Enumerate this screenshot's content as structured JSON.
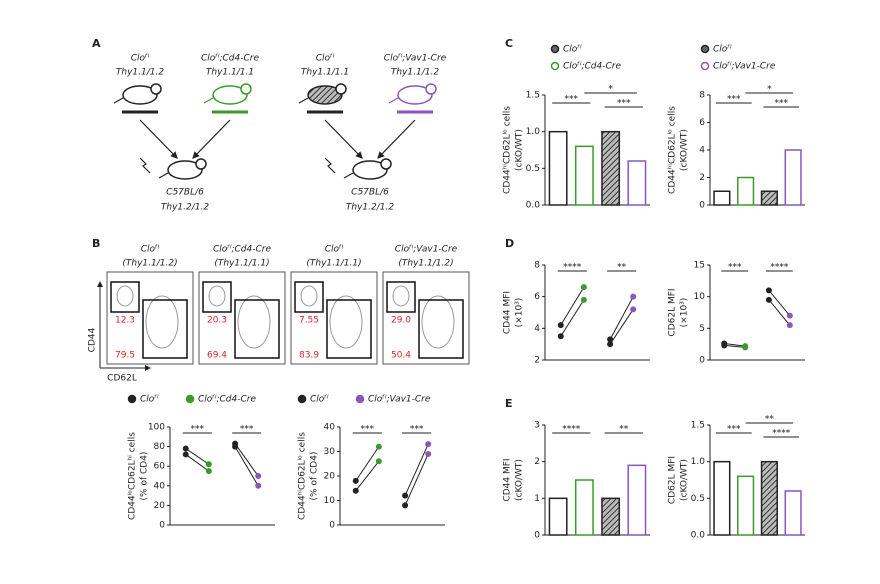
{
  "panel_labels": {
    "a": "A",
    "b": "B",
    "c": "C",
    "d": "D",
    "e": "E"
  },
  "panel_a": {
    "donors": [
      {
        "genotype": "Cloᶠˡ",
        "allotype": "Thy1.1/1.2",
        "color": "#222222"
      },
      {
        "genotype": "Cloᶠˡ;Cd4-Cre",
        "allotype": "Thy1.1/1.1",
        "color": "#3a9a2a"
      },
      {
        "genotype": "Cloᶠˡ",
        "allotype": "Thy1.1/1.1",
        "color": "#222222"
      },
      {
        "genotype": "Cloᶠˡ;Vav1-Cre",
        "allotype": "Thy1.1/1.2",
        "color": "#8a55c0"
      }
    ],
    "recipients": [
      {
        "strain": "C57BL/6",
        "allotype": "Thy1.2/1.2"
      },
      {
        "strain": "C57BL/6",
        "allotype": "Thy1.2/1.2"
      }
    ]
  },
  "panel_b": {
    "y_axis": "CD44",
    "x_axis": "CD62L",
    "plots": [
      {
        "genotype": "Cloᶠˡ",
        "allotype": "(Thy1.1/1.2)",
        "upper": "12.3",
        "lower": "79.5"
      },
      {
        "genotype": "Cloᶠˡ;Cd4-Cre",
        "allotype": "(Thy1.1/1.1)",
        "upper": "20.3",
        "lower": "69.4"
      },
      {
        "genotype": "Cloᶠˡ",
        "allotype": "(Thy1.1/1.1)",
        "upper": "7.55",
        "lower": "83.9"
      },
      {
        "genotype": "Cloᶠˡ;Vav1-Cre",
        "allotype": "(Thy1.1/1.2)",
        "upper": "29.0",
        "lower": "50.4"
      }
    ]
  },
  "legends": {
    "b": [
      {
        "name": "Cloᶠˡ",
        "color": "#222222"
      },
      {
        "name": "Cloᶠˡ;Cd4-Cre",
        "color": "#3a9a2a"
      },
      {
        "name": "Cloᶠˡ",
        "color": "#222222"
      },
      {
        "name": "Cloᶠˡ;Vav1-Cre",
        "color": "#8a55c0"
      }
    ],
    "ce": [
      {
        "name": "Cloᶠˡ",
        "color": "#222222"
      },
      {
        "name": "Cloᶠˡ;Cd4-Cre",
        "color": "#3a9a2a"
      },
      {
        "name": "Cloᶠˡ",
        "color": "#222222"
      },
      {
        "name": "Cloᶠˡ;Vav1-Cre",
        "color": "#8a55c0"
      }
    ]
  },
  "chart_data": [
    {
      "type": "paired",
      "ylabel": "CD44ˡᵒCD62Lʰⁱ cells",
      "yunit": "(% of CD4)",
      "ylim": [
        0,
        100
      ],
      "yticks": [
        0,
        20,
        40,
        60,
        80,
        100
      ],
      "series": [
        {
          "color": "#3a9a2a",
          "values": [
            78,
            62
          ]
        },
        {
          "color": "#3a9a2a",
          "values": [
            72,
            55
          ]
        },
        {
          "color": "#8a55c0",
          "values": [
            83,
            50
          ]
        },
        {
          "color": "#8a55c0",
          "values": [
            80,
            40
          ]
        }
      ],
      "groups": [
        0,
        0,
        1,
        1
      ],
      "annotations": [
        "***",
        "***"
      ]
    },
    {
      "type": "paired",
      "ylabel": "CD44ʰⁱCD62Lˡᵒ cells",
      "yunit": "(% of CD4)",
      "ylim": [
        0,
        40
      ],
      "yticks": [
        0,
        10,
        20,
        30,
        40
      ],
      "series": [
        {
          "color": "#3a9a2a",
          "values": [
            14,
            26
          ]
        },
        {
          "color": "#3a9a2a",
          "values": [
            18,
            32
          ]
        },
        {
          "color": "#8a55c0",
          "values": [
            8,
            29
          ]
        },
        {
          "color": "#8a55c0",
          "values": [
            12,
            33
          ]
        }
      ],
      "groups": [
        0,
        0,
        1,
        1
      ],
      "annotations": [
        "***",
        "***"
      ]
    },
    {
      "type": "bar",
      "ylabel": "CD44ʰⁱCD62Lˡᵒ cells",
      "yunit": "(cKO/WT)",
      "ylim": [
        0,
        1.5
      ],
      "yticks": [
        {
          "value": 0,
          "label": "0.0"
        },
        {
          "value": 0.5,
          "label": "0.5"
        },
        {
          "value": 1,
          "label": "1.0"
        },
        {
          "value": 1.5,
          "label": "1.5"
        }
      ],
      "values": [
        1.0,
        0.8,
        1.0,
        0.6
      ],
      "fills": [
        "#ffffff",
        "#ffffff",
        "#666666",
        "#ffffff"
      ],
      "strokes": [
        "#222222",
        "#3a9a2a",
        "#222222",
        "#8a55c0"
      ],
      "annotations": [
        "***",
        "*",
        "***"
      ]
    },
    {
      "type": "bar",
      "ylabel": "CD44ʰⁱCD62Lˡᵒ cells",
      "yunit": "(cKO/WT)",
      "ylim": [
        0,
        8
      ],
      "yticks": [
        0,
        2,
        4,
        6,
        8
      ],
      "values": [
        1,
        2,
        1,
        4
      ],
      "fills": [
        "#ffffff",
        "#ffffff",
        "#666666",
        "#ffffff"
      ],
      "strokes": [
        "#222222",
        "#3a9a2a",
        "#222222",
        "#8a55c0"
      ],
      "annotations": [
        "***",
        "*",
        "***"
      ]
    },
    {
      "type": "paired",
      "ylabel": "CD44 MFI",
      "yunit": "(×10³)",
      "ylim": [
        2,
        8
      ],
      "yticks": [
        2,
        4,
        6,
        8
      ],
      "series": [
        {
          "color": "#3a9a2a",
          "values": [
            4.2,
            6.6
          ]
        },
        {
          "color": "#3a9a2a",
          "values": [
            3.5,
            5.8
          ]
        },
        {
          "color": "#8a55c0",
          "values": [
            3.0,
            5.2
          ]
        },
        {
          "color": "#8a55c0",
          "values": [
            3.3,
            6.0
          ]
        }
      ],
      "groups": [
        0,
        0,
        1,
        1
      ],
      "annotations": [
        "****",
        "**"
      ]
    },
    {
      "type": "paired",
      "ylabel": "CD62L MFI",
      "yunit": "(×10³)",
      "ylim": [
        0,
        15
      ],
      "yticks": [
        0,
        5,
        10,
        15
      ],
      "series": [
        {
          "color": "#3a9a2a",
          "values": [
            2.6,
            2.2
          ]
        },
        {
          "color": "#3a9a2a",
          "values": [
            2.3,
            2.0
          ]
        },
        {
          "color": "#8a55c0",
          "values": [
            11,
            7
          ]
        },
        {
          "color": "#8a55c0",
          "values": [
            9.5,
            5.5
          ]
        }
      ],
      "groups": [
        0,
        0,
        1,
        1
      ],
      "annotations": [
        "***",
        "****"
      ]
    },
    {
      "type": "bar",
      "ylabel": "CD44 MFI",
      "yunit": "(cKO/WT)",
      "ylim": [
        0,
        3
      ],
      "yticks": [
        0,
        1,
        2,
        3
      ],
      "values": [
        1.0,
        1.5,
        1.0,
        1.9
      ],
      "fills": [
        "#ffffff",
        "#ffffff",
        "#666666",
        "#ffffff"
      ],
      "strokes": [
        "#222222",
        "#3a9a2a",
        "#222222",
        "#8a55c0"
      ],
      "annotations": [
        "****",
        "**"
      ]
    },
    {
      "type": "bar",
      "ylabel": "CD62L MFI",
      "yunit": "(cKO/WT)",
      "ylim": [
        0,
        1.5
      ],
      "yticks": [
        {
          "value": 0,
          "label": "0.0"
        },
        {
          "value": 0.5,
          "label": "0.5"
        },
        {
          "value": 1,
          "label": "1.0"
        },
        {
          "value": 1.5,
          "label": "1.5"
        }
      ],
      "values": [
        1.0,
        0.8,
        1.0,
        0.6
      ],
      "fills": [
        "#ffffff",
        "#ffffff",
        "#666666",
        "#ffffff"
      ],
      "strokes": [
        "#222222",
        "#3a9a2a",
        "#222222",
        "#8a55c0"
      ],
      "annotations": [
        "***",
        "**",
        "****"
      ]
    }
  ]
}
